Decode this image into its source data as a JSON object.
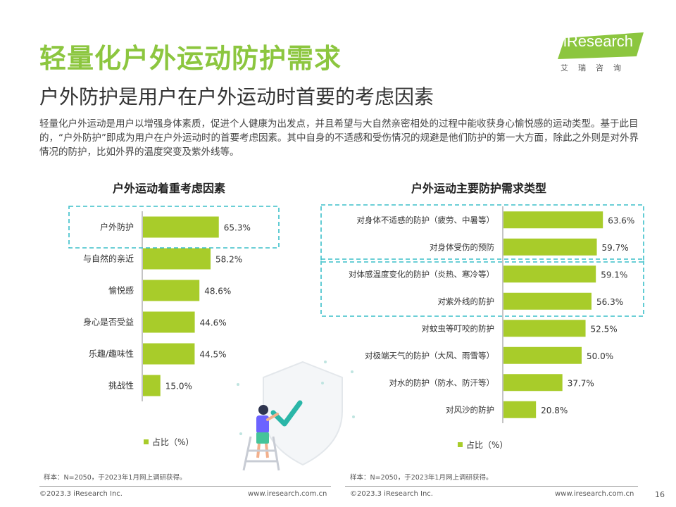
{
  "title": "轻量化户外运动防护需求",
  "subtitle": "户外防护是用户在户外运动时首要的考虑因素",
  "intro": "轻量化户外运动是用户以增强身体素质，促进个人健康为出发点，并且希望与大自然亲密相处的过程中能收获身心愉悦感的运动类型。基于此目的，“户外防护”即成为用户在户外运动时的首要考虑因素。其中自身的不适感和受伤情况的规避是他们防护的第一大方面，除此之外则是对外界情况的防护，比如外界的温度突变及紫外线等。",
  "logo": {
    "text": "iResearch",
    "sub": "艾瑞咨询"
  },
  "colors": {
    "accent": "#8cc63f",
    "bar": "#a8cc2a",
    "highlight": "#3bbfc9"
  },
  "chart_data": [
    {
      "type": "bar",
      "orientation": "horizontal",
      "title": "户外运动着重考虑因素",
      "categories": [
        "户外防护",
        "与自然的亲近",
        "愉悦感",
        "身心是否受益",
        "乐趣/趣味性",
        "挑战性"
      ],
      "series": [
        {
          "name": "占比（%）",
          "values": [
            65.3,
            58.2,
            48.6,
            44.6,
            44.5,
            15.0
          ]
        }
      ],
      "value_labels": [
        "65.3%",
        "58.2%",
        "48.6%",
        "44.6%",
        "44.5%",
        "15.0%"
      ],
      "xlim": [
        0,
        100
      ],
      "legend": "bottom-left",
      "highlight_groups": [
        [
          0
        ]
      ]
    },
    {
      "type": "bar",
      "orientation": "horizontal",
      "title": "户外运动主要防护需求类型",
      "categories": [
        "对身体不适感的防护（疲劳、中暑等）",
        "对身体受伤的预防",
        "对体感温度变化的防护（炎热、寒冷等）",
        "对紫外线的防护",
        "对蚊虫等叮咬的防护",
        "对极端天气的防护（大风、雨雪等）",
        "对水的防护（防水、防汗等）",
        "对风沙的防护"
      ],
      "series": [
        {
          "name": "占比（%）",
          "values": [
            63.6,
            59.7,
            59.1,
            56.3,
            52.5,
            50.0,
            37.7,
            20.8
          ]
        }
      ],
      "value_labels": [
        "63.6%",
        "59.7%",
        "59.1%",
        "56.3%",
        "52.5%",
        "50.0%",
        "37.7%",
        "20.8%"
      ],
      "xlim": [
        0,
        100
      ],
      "legend": "bottom-center",
      "highlight_groups": [
        [
          0,
          1
        ],
        [
          2,
          3
        ]
      ]
    }
  ],
  "footer": {
    "note_left": "样本：N=2050，于2023年1月网上调研获得。",
    "note_right": "样本：N=2050，于2023年1月网上调研获得。",
    "copyright_left": "©2023.3 iResearch Inc.",
    "website_left": "www.iresearch.com.cn",
    "copyright_right": "©2023.3 iResearch Inc.",
    "website_right": "www.iresearch.com.cn",
    "page_number": "16"
  }
}
